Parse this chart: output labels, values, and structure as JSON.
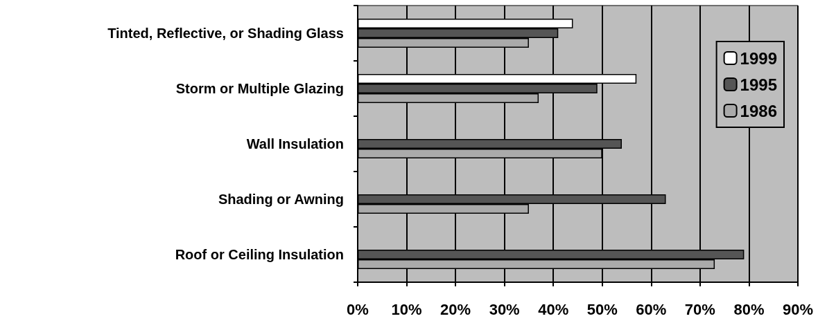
{
  "chart_data": {
    "type": "bar",
    "orientation": "horizontal",
    "categories": [
      "Tinted, Reflective, or Shading Glass",
      "Storm or Multiple Glazing",
      "Wall Insulation",
      "Shading or Awning",
      "Roof or Ceiling Insulation"
    ],
    "series": [
      {
        "name": "1999",
        "color": "#ffffff",
        "values": [
          44,
          57,
          null,
          null,
          null
        ]
      },
      {
        "name": "1995",
        "color": "#555555",
        "values": [
          41,
          49,
          54,
          63,
          79
        ]
      },
      {
        "name": "1986",
        "color": "#aaaaaa",
        "values": [
          35,
          37,
          50,
          35,
          73
        ]
      }
    ],
    "xlim": [
      0,
      90
    ],
    "xticks": [
      {
        "value": 0,
        "label": "0%"
      },
      {
        "value": 10,
        "label": "10%"
      },
      {
        "value": 20,
        "label": "20%"
      },
      {
        "value": 30,
        "label": "30%"
      },
      {
        "value": 40,
        "label": "40%"
      },
      {
        "value": 50,
        "label": "50%"
      },
      {
        "value": 60,
        "label": "60%"
      },
      {
        "value": 70,
        "label": "70%"
      },
      {
        "value": 80,
        "label": "80%"
      },
      {
        "value": 90,
        "label": "90%"
      }
    ],
    "grid": "x",
    "legend": "top right"
  }
}
